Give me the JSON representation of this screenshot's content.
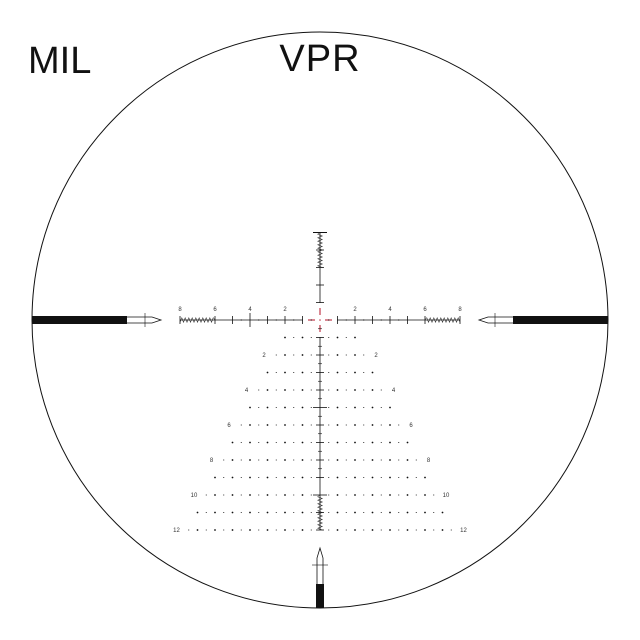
{
  "unit_label": "MIL",
  "reticle_name": "VPR",
  "colors": {
    "reticle": "#111111",
    "center": "#c0394b",
    "background": "#ffffff"
  },
  "horizontal_scale": {
    "left_labels": [
      "2",
      "4",
      "6",
      "8"
    ],
    "right_labels": [
      "2",
      "4",
      "6",
      "8"
    ],
    "extent_mil": 8
  },
  "holdover": {
    "row_labels": [
      "2",
      "4",
      "6",
      "8",
      "10",
      "12"
    ],
    "rows": 12
  },
  "vertical_scale": {
    "top_extent_mil": 5,
    "bottom_extent_mil": 12
  }
}
